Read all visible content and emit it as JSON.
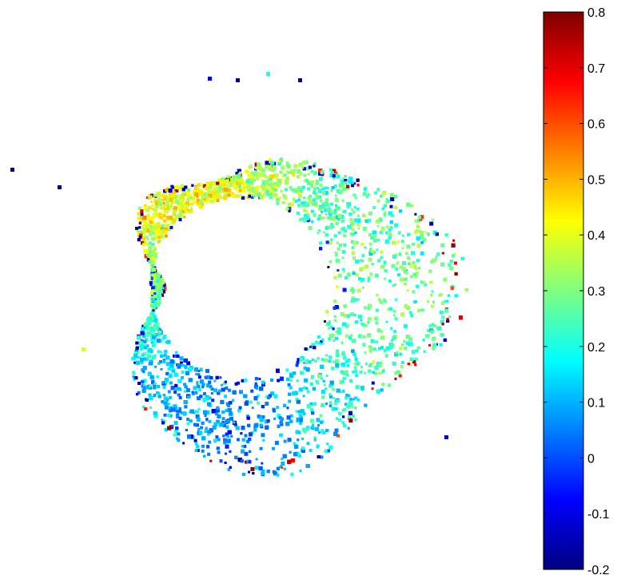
{
  "chart_data": {
    "type": "scatter",
    "title": "",
    "xlabel": "",
    "ylabel": "",
    "axes_visible": false,
    "grid": false,
    "legend": "none",
    "shape": "annulus",
    "colormap": "jet",
    "colorbar": {
      "placement": "right",
      "clim": [
        -0.2,
        0.8
      ],
      "ticks": [
        -0.2,
        -0.1,
        0,
        0.1,
        0.2,
        0.3,
        0.4,
        0.5,
        0.6,
        0.7,
        0.8
      ],
      "tick_labels": [
        "-0.2",
        "-0.1",
        "0",
        "0.1",
        "0.2",
        "0.3",
        "0.4",
        "0.5",
        "0.6",
        "0.7",
        "0.8"
      ]
    },
    "series": [
      {
        "description_values_by_angle": [
          {
            "angle_deg": 0,
            "typical_value": 0.28
          },
          {
            "angle_deg": 45,
            "typical_value": 0.25
          },
          {
            "angle_deg": 90,
            "typical_value": 0.38
          },
          {
            "angle_deg": 135,
            "typical_value": 0.42
          },
          {
            "angle_deg": 180,
            "typical_value": 0.3
          },
          {
            "angle_deg": 225,
            "typical_value": 0.12
          },
          {
            "angle_deg": 270,
            "typical_value": 0.05
          },
          {
            "angle_deg": 315,
            "typical_value": 0.2
          }
        ]
      }
    ]
  },
  "colors": {
    "background": "#ffffff",
    "jet_stops": [
      "#00007f",
      "#0000ff",
      "#00ffff",
      "#ffff00",
      "#ff0000",
      "#7f0000"
    ]
  }
}
